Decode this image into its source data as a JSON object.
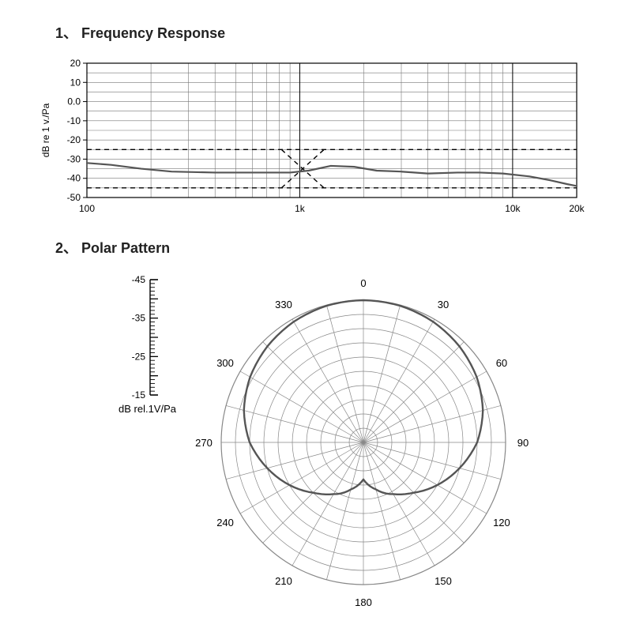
{
  "section1": {
    "number": "1、",
    "title": "Frequency Response",
    "title_fontsize": 18,
    "title_color": "#222222",
    "title_weight": 700,
    "chart": {
      "type": "line",
      "background_color": "#ffffff",
      "axis_color": "#000000",
      "grid_color": "#777777",
      "grid_width": 0.6,
      "frame_width": 1.2,
      "xscale": "log",
      "xlim": [
        100,
        20000
      ],
      "xtick_majors": [
        100,
        1000,
        10000,
        20000
      ],
      "xtick_labels": [
        "100",
        "1k",
        "10k",
        "20k"
      ],
      "xtick_minors_per_decade": [
        2,
        3,
        4,
        5,
        6,
        7,
        8,
        9
      ],
      "ylim": [
        -50,
        20
      ],
      "ytick_step": 10,
      "ytick_labels": [
        "20",
        "10",
        "0.0",
        "-10",
        "-20",
        "-30",
        "-40",
        "-50"
      ],
      "ylabel": "dB re 1 v./Pa",
      "ylabel_fontsize": 12,
      "tick_fontsize": 12,
      "response_curve": {
        "color": "#555555",
        "width": 2.2,
        "points": [
          [
            100,
            -32
          ],
          [
            130,
            -33
          ],
          [
            180,
            -35
          ],
          [
            250,
            -36.5
          ],
          [
            400,
            -37
          ],
          [
            600,
            -37
          ],
          [
            900,
            -37
          ],
          [
            1100,
            -36
          ],
          [
            1400,
            -33.5
          ],
          [
            1800,
            -34
          ],
          [
            2300,
            -36
          ],
          [
            3000,
            -36.5
          ],
          [
            4000,
            -37.5
          ],
          [
            5500,
            -37
          ],
          [
            7000,
            -37
          ],
          [
            9000,
            -37.5
          ],
          [
            12000,
            -39
          ],
          [
            15000,
            -41
          ],
          [
            18000,
            -43
          ],
          [
            20000,
            -44
          ]
        ]
      },
      "tolerance_upper": {
        "color": "#000000",
        "width": 1.4,
        "dash": "6,5",
        "points": [
          [
            100,
            -25
          ],
          [
            1000,
            -25
          ],
          [
            2000,
            -25
          ],
          [
            20000,
            -25
          ]
        ]
      },
      "tolerance_lower": {
        "color": "#000000",
        "width": 1.4,
        "dash": "6,5",
        "points": [
          [
            100,
            -45
          ],
          [
            800,
            -45
          ],
          [
            1300,
            -45
          ],
          [
            2200,
            -45
          ],
          [
            20000,
            -45
          ]
        ]
      },
      "tolerance_cross_a": {
        "color": "#000000",
        "width": 1.4,
        "dash": "6,5",
        "points": [
          [
            820,
            -25
          ],
          [
            1300,
            -45
          ]
        ]
      },
      "tolerance_cross_b": {
        "color": "#000000",
        "width": 1.4,
        "dash": "6,5",
        "points": [
          [
            820,
            -45
          ],
          [
            1300,
            -25
          ]
        ]
      }
    }
  },
  "section2": {
    "number": "2、",
    "title": "Polar Pattern",
    "title_fontsize": 18,
    "title_color": "#222222",
    "title_weight": 700,
    "chart": {
      "type": "polar",
      "background_color": "#ffffff",
      "grid_color": "#888888",
      "grid_width": 0.7,
      "outer_frame_width": 1.2,
      "angle_labels": [
        "0",
        "30",
        "60",
        "90",
        "120",
        "150",
        "180",
        "210",
        "240",
        "270",
        "300",
        "330"
      ],
      "angle_label_fontsize": 13,
      "rings": 10,
      "spokes": 24,
      "radial_axis": {
        "label": "dB rel.1V/Pa",
        "label_fontsize": 13,
        "values": [
          "-45",
          "",
          "-35",
          "",
          "-25",
          "",
          "-15"
        ],
        "tick_fontsize": 12
      },
      "cardioid": {
        "color": "#555555",
        "width": 2.4,
        "r_by_angle_deg": {
          "0": 1.0,
          "15": 0.995,
          "30": 0.98,
          "45": 0.955,
          "60": 0.92,
          "75": 0.87,
          "90": 0.8,
          "105": 0.7,
          "120": 0.6,
          "135": 0.5,
          "150": 0.42,
          "165": 0.36,
          "180": 0.33,
          "195": 0.36,
          "210": 0.42,
          "225": 0.5,
          "240": 0.6,
          "255": 0.7,
          "270": 0.8,
          "285": 0.87,
          "300": 0.92,
          "315": 0.955,
          "330": 0.98,
          "345": 0.995
        },
        "rear_dip": {
          "angle": 180,
          "r": 0.26,
          "width_deg": 30
        }
      }
    }
  }
}
